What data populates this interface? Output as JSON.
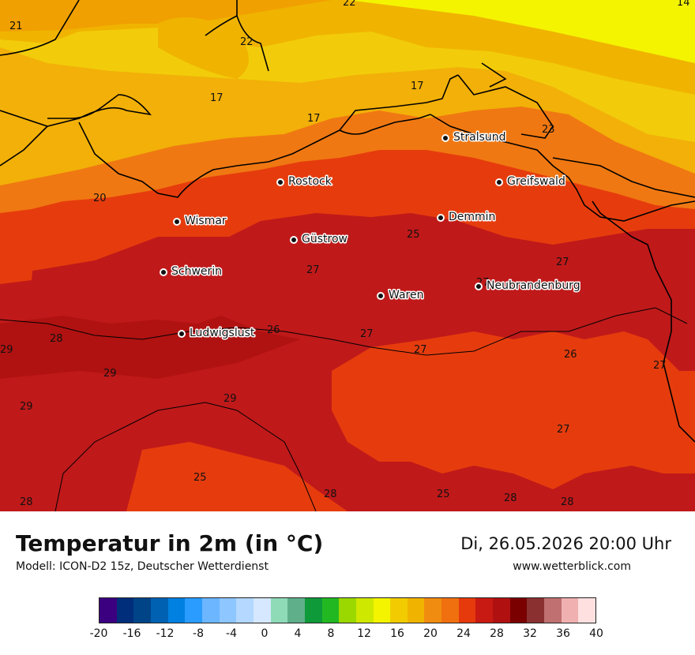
{
  "title": "Temperatur in 2m (in °C)",
  "model": "Modell: ICON-D2 15z, Deutscher Wetterdienst",
  "datetime": "Di, 26.05.2026 20:00 Uhr",
  "website": "www.wetterblick.com",
  "cities": [
    {
      "name": "Stralsund"
    },
    {
      "name": "Rostock"
    },
    {
      "name": "Greifswald"
    },
    {
      "name": "Wismar"
    },
    {
      "name": "Demmin"
    },
    {
      "name": "Güstrow"
    },
    {
      "name": "Schwerin"
    },
    {
      "name": "Neubrandenburg"
    },
    {
      "name": "Waren"
    },
    {
      "name": "Ludwigslust"
    }
  ],
  "map_values": [
    "22",
    "21",
    "22",
    "14",
    "17",
    "17",
    "17",
    "20",
    "23",
    "25",
    "27",
    "27",
    "27",
    "28",
    "26",
    "27",
    "27",
    "26",
    "27",
    "29",
    "29",
    "29",
    "29",
    "25",
    "27",
    "28",
    "25",
    "28",
    "28",
    "28"
  ],
  "legend": {
    "ticks": [
      "-20",
      "-16",
      "-12",
      "-8",
      "-4",
      "0",
      "4",
      "8",
      "12",
      "16",
      "20",
      "24",
      "28",
      "32",
      "36",
      "40"
    ],
    "colors": [
      "#3b0080",
      "#002e7a",
      "#004488",
      "#0061b3",
      "#0080e0",
      "#2b9cff",
      "#6bb6ff",
      "#8ec6ff",
      "#b4d8ff",
      "#d5e8ff",
      "#8fdbb8",
      "#5fb08a",
      "#0f9a3a",
      "#22b822",
      "#9ad800",
      "#cfe800",
      "#f4f400",
      "#f2cc00",
      "#f0b400",
      "#f08c10",
      "#f07010",
      "#e63a0c",
      "#c81a12",
      "#b01010",
      "#7a0000",
      "#8a3030",
      "#c07070",
      "#f0b0b0",
      "#ffe0e0"
    ]
  }
}
